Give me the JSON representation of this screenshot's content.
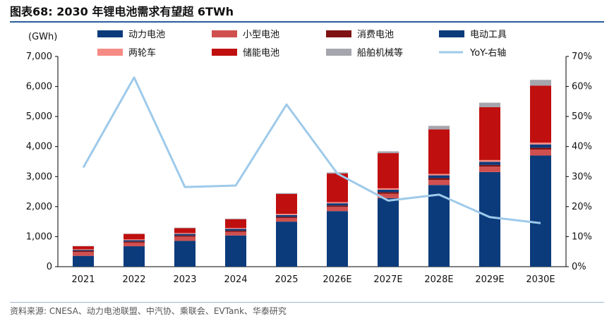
{
  "header": {
    "title": "图表68:  2030 年锂电池需求有望超 6TWh"
  },
  "footer": {
    "source": "资料来源: CNESA、动力电池联盟、中汽协、乘联会、EVTank、华泰研究"
  },
  "chart_data": {
    "type": "bar",
    "stacked": true,
    "categories": [
      "2021",
      "2022",
      "2023",
      "2024",
      "2025",
      "2026E",
      "2027E",
      "2028E",
      "2029E",
      "2030E"
    ],
    "ylabel_left": "(GWh)",
    "ylim_left": [
      0,
      7000
    ],
    "yticks_left": [
      "0",
      "1,000",
      "2,000",
      "3,000",
      "4,000",
      "5,000",
      "6,000",
      "7,000"
    ],
    "ylim_right": [
      0,
      70
    ],
    "yticks_right": [
      "0%",
      "10%",
      "20%",
      "30%",
      "40%",
      "50%",
      "60%",
      "70%"
    ],
    "legend_position": "top",
    "series": [
      {
        "name": "动力电池",
        "color": "#0b3b7b",
        "values": [
          360,
          680,
          860,
          1040,
          1500,
          1850,
          2280,
          2720,
          3150,
          3700
        ]
      },
      {
        "name": "小型电池",
        "color": "#d0504f",
        "values": [
          130,
          120,
          140,
          120,
          120,
          140,
          150,
          170,
          180,
          200
        ]
      },
      {
        "name": "消费电池",
        "color": "#7f1212",
        "values": [
          40,
          40,
          40,
          40,
          40,
          50,
          50,
          60,
          60,
          60
        ]
      },
      {
        "name": "电动工具",
        "color": "#0b3b7b",
        "values": [
          30,
          40,
          50,
          60,
          60,
          70,
          80,
          90,
          100,
          110
        ]
      },
      {
        "name": "两轮车",
        "color": "#f58b84",
        "values": [
          20,
          30,
          30,
          30,
          40,
          40,
          50,
          50,
          60,
          60
        ]
      },
      {
        "name": "储能电池",
        "color": "#c00f0f",
        "values": [
          100,
          180,
          160,
          290,
          660,
          950,
          1170,
          1480,
          1760,
          1900
        ]
      },
      {
        "name": "船舶机械等",
        "color": "#a5a5ad",
        "values": [
          10,
          10,
          20,
          20,
          30,
          40,
          60,
          120,
          150,
          190
        ]
      },
      {
        "name": "YoY-右轴",
        "color": "#9ecaea",
        "type": "line",
        "axis": "right",
        "values": [
          33,
          63,
          26.5,
          27,
          54,
          31,
          22,
          24,
          16.5,
          14.5
        ]
      }
    ]
  }
}
